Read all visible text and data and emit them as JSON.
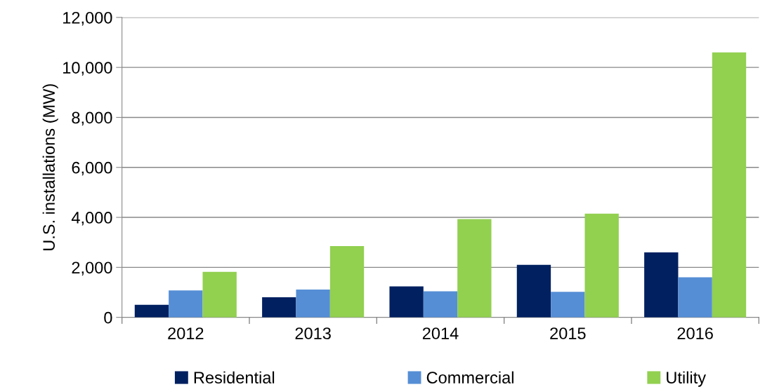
{
  "chart_data": {
    "type": "bar",
    "ylabel": "U.S. installations (MW)",
    "categories": [
      "2012",
      "2013",
      "2014",
      "2015",
      "2016"
    ],
    "series": [
      {
        "name": "Residential",
        "color": "#002060",
        "values": [
          500,
          800,
          1240,
          2100,
          2600
        ]
      },
      {
        "name": "Commercial",
        "color": "#558ed5",
        "values": [
          1080,
          1110,
          1040,
          1020,
          1600
        ]
      },
      {
        "name": "Utility",
        "color": "#92d050",
        "values": [
          1820,
          2850,
          3930,
          4150,
          10600
        ]
      }
    ],
    "ylim": [
      0,
      12000
    ],
    "yticks": [
      {
        "value": 0,
        "label": "0"
      },
      {
        "value": 2000,
        "label": "2,000"
      },
      {
        "value": 4000,
        "label": "4,000"
      },
      {
        "value": 6000,
        "label": "6,000"
      },
      {
        "value": 8000,
        "label": "8,000"
      },
      {
        "value": 10000,
        "label": "10,000"
      },
      {
        "value": 12000,
        "label": "12,000"
      }
    ],
    "grid": "y",
    "legend": "bottom"
  }
}
